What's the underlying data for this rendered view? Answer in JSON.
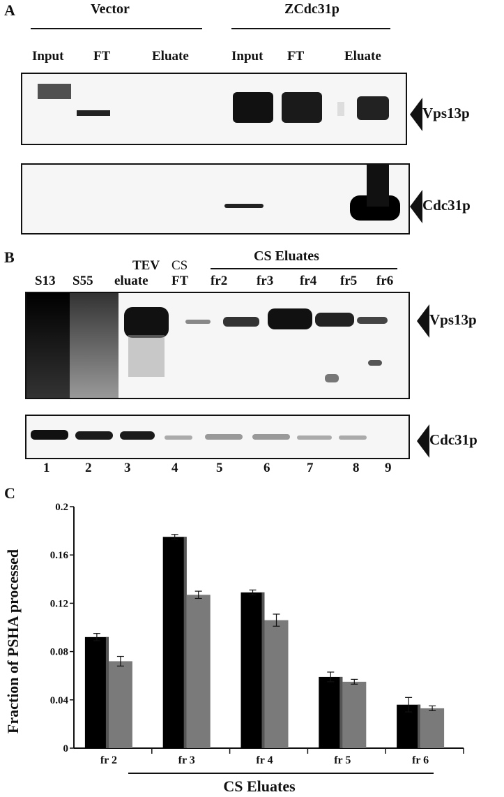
{
  "panel_a": {
    "letter": "A",
    "group_vector": "Vector",
    "group_zcdc": "ZCdc31p",
    "lanes": [
      "Input",
      "FT",
      "Eluate",
      "Input",
      "FT",
      "Eluate"
    ],
    "protein_top": "Vps13p",
    "protein_bottom": "Cdc31p"
  },
  "panel_b": {
    "letter": "B",
    "group_cs": "CS Eluates",
    "lanes": [
      "S13",
      "S55",
      "TEV",
      "eluate",
      "CS",
      "FT",
      "fr2",
      "fr3",
      "fr4",
      "fr5",
      "fr6"
    ],
    "lane_numbers": [
      "1",
      "2",
      "3",
      "4",
      "5",
      "6",
      "7",
      "8",
      "9"
    ],
    "protein_top": "Vps13p",
    "protein_bottom": "Cdc31p"
  },
  "panel_c": {
    "letter": "C"
  },
  "chart_data": {
    "type": "bar",
    "categories": [
      "fr 2",
      "fr 3",
      "fr 4",
      "fr 5",
      "fr 6"
    ],
    "series": [
      {
        "values": [
          0.092,
          0.175,
          0.129,
          0.059,
          0.036
        ],
        "errors": [
          0.003,
          0.002,
          0.002,
          0.004,
          0.006
        ],
        "color": "#000000"
      },
      {
        "values": [
          0.072,
          0.127,
          0.106,
          0.055,
          0.033
        ],
        "errors": [
          0.004,
          0.003,
          0.005,
          0.002,
          0.002
        ],
        "color": "#7a7a7a"
      }
    ],
    "ylabel": "Fraction of PSHA processed",
    "xlabel": "CS Eluates",
    "ylim": [
      0,
      0.2
    ],
    "yticks": [
      "0",
      "0.04",
      "0.08",
      "0.12",
      "0.16",
      "0.2"
    ],
    "legend": "none",
    "grid": false
  }
}
